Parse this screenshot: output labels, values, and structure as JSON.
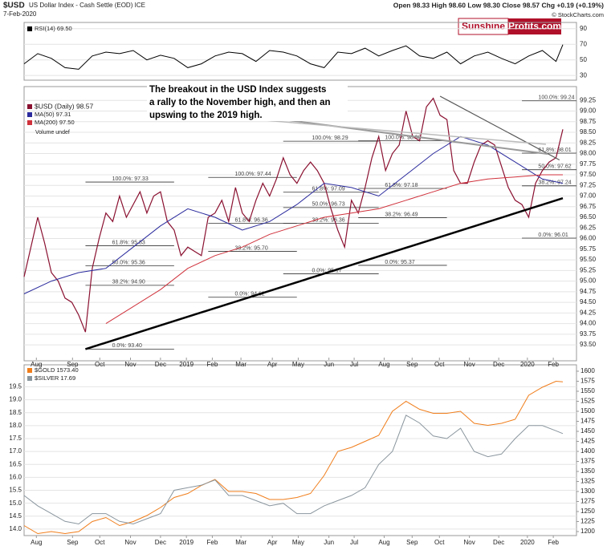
{
  "chart_data": [
    {
      "type": "line",
      "title": "RSI(14) 69.50",
      "xlim": [
        0,
        81
      ],
      "ylim": [
        24,
        98
      ],
      "yticks": [
        30,
        50,
        70,
        90
      ],
      "x": [
        0,
        2,
        4,
        6,
        8,
        10,
        12,
        14,
        16,
        18,
        20,
        22,
        24,
        26,
        28,
        30,
        32,
        34,
        36,
        38,
        40,
        42,
        44,
        46,
        48,
        50,
        52,
        54,
        56,
        58,
        60,
        62,
        64,
        66,
        68,
        70,
        72,
        74,
        76,
        78,
        79
      ],
      "series": [
        {
          "name": "RSI(14) 69.50",
          "color": "#000000",
          "values": [
            45,
            58,
            52,
            40,
            38,
            55,
            60,
            58,
            62,
            50,
            56,
            52,
            40,
            45,
            55,
            60,
            58,
            48,
            62,
            60,
            55,
            45,
            40,
            60,
            58,
            65,
            55,
            62,
            68,
            55,
            52,
            60,
            45,
            55,
            60,
            52,
            45,
            55,
            62,
            48,
            69.5
          ]
        }
      ]
    },
    {
      "type": "line",
      "symbol": "$USD",
      "name": "US Dollar Index - Cash Settle (EOD) ICE",
      "date": "7-Feb-2020",
      "quote": "Open 98.33 High 98.60 Low 98.30 Close 98.57 Chg +0.19 (+0.19%)",
      "credit": "© StockCharts.com",
      "logo": [
        "Sunshine",
        "Profits.com"
      ],
      "volume_label": "Volume undef",
      "annotation": [
        "The breakout in the USD Index suggests",
        "a rally to the November high, and then an",
        "upswing to the 2019 high."
      ],
      "xlim": [
        0,
        81
      ],
      "ylim": [
        93.2,
        99.5
      ],
      "yticks": [
        {
          "value": 93.5,
          "label": "93.50"
        },
        {
          "value": 93.75,
          "label": "93.75"
        },
        {
          "value": 94,
          "label": "94.00"
        },
        {
          "value": 94.25,
          "label": "94.25"
        },
        {
          "value": 94.5,
          "label": "94.50"
        },
        {
          "value": 94.75,
          "label": "94.75"
        },
        {
          "value": 95,
          "label": "95.00"
        },
        {
          "value": 95.25,
          "label": "95.25"
        },
        {
          "value": 95.5,
          "label": "95.50"
        },
        {
          "value": 95.75,
          "label": "95.75"
        },
        {
          "value": 96,
          "label": "96.00"
        },
        {
          "value": 96.25,
          "label": "96.25"
        },
        {
          "value": 96.5,
          "label": "96.50"
        },
        {
          "value": 96.75,
          "label": "96.75"
        },
        {
          "value": 97,
          "label": "97.00"
        },
        {
          "value": 97.25,
          "label": "97.25"
        },
        {
          "value": 97.5,
          "label": "97.50"
        },
        {
          "value": 97.75,
          "label": "97.75"
        },
        {
          "value": 98,
          "label": "98.00"
        },
        {
          "value": 98.25,
          "label": "98.25"
        },
        {
          "value": 98.5,
          "label": "98.50"
        },
        {
          "value": 98.75,
          "label": "98.75"
        },
        {
          "value": 99,
          "label": "99.00"
        },
        {
          "value": 99.25,
          "label": "99.25"
        }
      ],
      "xticks": [
        {
          "value": 1.8,
          "label": "Aug"
        },
        {
          "value": 7.1,
          "label": "Sep"
        },
        {
          "value": 11.1,
          "label": "Oct"
        },
        {
          "value": 15.6,
          "label": "Nov"
        },
        {
          "value": 20,
          "label": "Dec"
        },
        {
          "value": 23.8,
          "label": "2019"
        },
        {
          "value": 27.6,
          "label": "Feb"
        },
        {
          "value": 31.8,
          "label": "Mar"
        },
        {
          "value": 36.4,
          "label": "Apr"
        },
        {
          "value": 40.2,
          "label": "May"
        },
        {
          "value": 44.7,
          "label": "Jun"
        },
        {
          "value": 48.4,
          "label": "Jul"
        },
        {
          "value": 52.8,
          "label": "Aug"
        },
        {
          "value": 56.9,
          "label": "Sep"
        },
        {
          "value": 60.9,
          "label": "Oct"
        },
        {
          "value": 65.3,
          "label": "Nov"
        },
        {
          "value": 69.6,
          "label": "Dec"
        },
        {
          "value": 73.8,
          "label": "2020"
        },
        {
          "value": 77.6,
          "label": "Feb"
        }
      ],
      "x": [
        0,
        1,
        2,
        3,
        4,
        5,
        6,
        7,
        8,
        9,
        10,
        11,
        12,
        13,
        14,
        15,
        16,
        17,
        18,
        19,
        20,
        21,
        22,
        23,
        24,
        25,
        26,
        27,
        28,
        29,
        30,
        31,
        32,
        33,
        34,
        35,
        36,
        37,
        38,
        39,
        40,
        41,
        42,
        43,
        44,
        45,
        46,
        47,
        48,
        49,
        50,
        51,
        52,
        53,
        54,
        55,
        56,
        57,
        58,
        59,
        60,
        61,
        62,
        63,
        64,
        65,
        66,
        67,
        68,
        69,
        70,
        71,
        72,
        73,
        74,
        75,
        76,
        77,
        78,
        79
      ],
      "series": [
        {
          "name": "$USD (Daily) 98.57",
          "color": "#8a1030",
          "values": [
            95.1,
            95.8,
            96.5,
            95.9,
            95.2,
            95.0,
            94.6,
            94.5,
            94.2,
            93.8,
            95.3,
            96.0,
            96.6,
            96.4,
            97.0,
            96.5,
            96.8,
            97.1,
            96.6,
            97.0,
            97.1,
            96.4,
            96.2,
            95.6,
            95.8,
            95.7,
            95.6,
            96.5,
            96.6,
            96.9,
            96.4,
            97.2,
            96.6,
            96.4,
            96.9,
            97.3,
            97.0,
            97.4,
            97.9,
            97.5,
            97.3,
            97.6,
            97.8,
            97.6,
            97.3,
            96.7,
            96.2,
            95.8,
            96.9,
            96.6,
            97.2,
            97.9,
            98.4,
            97.6,
            98.0,
            98.2,
            99.0,
            98.4,
            98.3,
            99.1,
            99.3,
            98.9,
            98.8,
            97.6,
            97.3,
            97.3,
            97.8,
            98.2,
            98.3,
            98.2,
            97.7,
            97.2,
            96.9,
            96.8,
            96.5,
            97.3,
            97.6,
            97.8,
            97.9,
            98.57
          ]
        },
        {
          "name": "MA(50) 97.31",
          "color": "#2b2b9e",
          "x": [
            0,
            4,
            8,
            12,
            16,
            20,
            24,
            28,
            32,
            36,
            40,
            44,
            48,
            52,
            56,
            60,
            64,
            68,
            72,
            76,
            79
          ],
          "values": [
            94.7,
            95.0,
            95.2,
            95.3,
            95.8,
            96.3,
            96.7,
            96.5,
            96.2,
            96.4,
            96.8,
            97.3,
            97.2,
            97.0,
            97.5,
            98.0,
            98.4,
            98.2,
            97.8,
            97.4,
            97.3
          ]
        },
        {
          "name": "MA(200) 97.50",
          "color": "#d0323c",
          "x": [
            12,
            16,
            20,
            24,
            28,
            32,
            36,
            40,
            44,
            48,
            52,
            56,
            60,
            64,
            68,
            72,
            76,
            79
          ],
          "values": [
            94.0,
            94.4,
            94.8,
            95.3,
            95.6,
            95.8,
            96.1,
            96.3,
            96.5,
            96.6,
            96.7,
            96.9,
            97.1,
            97.3,
            97.4,
            97.45,
            97.5,
            97.5
          ]
        }
      ],
      "trendlines": [
        {
          "color": "#000000",
          "x": [
            9,
            79
          ],
          "values": [
            93.4,
            96.95
          ]
        },
        {
          "color": "#555555",
          "x": [
            61,
            78.5
          ],
          "values": [
            99.35,
            97.85
          ]
        }
      ],
      "fibs": [
        {
          "label": "100.0%: 97.33",
          "value": 97.33,
          "x": [
            9,
            22
          ]
        },
        {
          "label": "61.8%: 95.83",
          "value": 95.83,
          "x": [
            9,
            22
          ]
        },
        {
          "label": "50.0%: 95.36",
          "value": 95.36,
          "x": [
            9,
            22
          ]
        },
        {
          "label": "38.2%: 94.90",
          "value": 94.9,
          "x": [
            9,
            22
          ]
        },
        {
          "label": "0.0%: 93.40",
          "value": 93.4,
          "x": [
            9,
            22
          ]
        },
        {
          "label": "100.0%: 97.44",
          "value": 97.44,
          "x": [
            27,
            40
          ]
        },
        {
          "label": "61.8%: 96.36",
          "value": 96.36,
          "x": [
            27,
            40
          ]
        },
        {
          "label": "38.2%: 95.70",
          "value": 95.7,
          "x": [
            27,
            40
          ]
        },
        {
          "label": "0.0%: 94.62",
          "value": 94.62,
          "x": [
            27,
            40
          ]
        },
        {
          "label": "100.0%: 98.29",
          "value": 98.29,
          "x": [
            38,
            52
          ]
        },
        {
          "label": "61.8%: 97.09",
          "value": 97.09,
          "x": [
            38,
            52
          ]
        },
        {
          "label": "50.0%: 96.73",
          "value": 96.73,
          "x": [
            38,
            52
          ]
        },
        {
          "label": "38.2%: 96.36",
          "value": 96.36,
          "x": [
            38,
            52
          ]
        },
        {
          "label": "0.0%: 95.17",
          "value": 95.17,
          "x": [
            38,
            52
          ]
        },
        {
          "label": "100.0%: 98.30",
          "value": 98.3,
          "x": [
            49,
            62
          ]
        },
        {
          "label": "61.8%: 97.18",
          "value": 97.18,
          "x": [
            49,
            62
          ]
        },
        {
          "label": "38.2%: 96.49",
          "value": 96.49,
          "x": [
            49,
            62
          ]
        },
        {
          "label": "0.0%: 95.37",
          "value": 95.37,
          "x": [
            49,
            62
          ]
        },
        {
          "label": "100.0%: 99.24",
          "value": 99.24,
          "x": [
            73,
            81
          ]
        },
        {
          "label": "61.8%: 98.01",
          "value": 98.01,
          "x": [
            73,
            81
          ]
        },
        {
          "label": "50.0%: 97.62",
          "value": 97.62,
          "x": [
            73,
            81
          ]
        },
        {
          "label": "38.2%: 97.24",
          "value": 97.24,
          "x": [
            73,
            81
          ]
        },
        {
          "label": "0.0%: 96.01",
          "value": 96.01,
          "x": [
            73,
            81
          ]
        }
      ]
    },
    {
      "type": "line",
      "xlim": [
        0,
        81
      ],
      "ylim": [
        13.75,
        20.35
      ],
      "y2lim": [
        1190,
        1616
      ],
      "yticks": [
        {
          "value": 14,
          "label": "14.0"
        },
        {
          "value": 14.5,
          "label": "14.5"
        },
        {
          "value": 15,
          "label": "15.0"
        },
        {
          "value": 15.5,
          "label": "15.5"
        },
        {
          "value": 16,
          "label": "16.0"
        },
        {
          "value": 16.5,
          "label": "16.5"
        },
        {
          "value": 17,
          "label": "17.0"
        },
        {
          "value": 17.5,
          "label": "17.5"
        },
        {
          "value": 18,
          "label": "18.0"
        },
        {
          "value": 18.5,
          "label": "18.5"
        },
        {
          "value": 19,
          "label": "19.0"
        },
        {
          "value": 19.5,
          "label": "19.5"
        }
      ],
      "y2ticks": [
        1200,
        1225,
        1250,
        1275,
        1300,
        1325,
        1350,
        1375,
        1400,
        1425,
        1450,
        1475,
        1500,
        1525,
        1550,
        1575,
        1600
      ],
      "xticks": [
        {
          "value": 1.8,
          "label": "Aug"
        },
        {
          "value": 7.1,
          "label": "Sep"
        },
        {
          "value": 11.1,
          "label": "Oct"
        },
        {
          "value": 15.6,
          "label": "Nov"
        },
        {
          "value": 20,
          "label": "Dec"
        },
        {
          "value": 23.8,
          "label": "2019"
        },
        {
          "value": 27.6,
          "label": "Feb"
        },
        {
          "value": 31.8,
          "label": "Mar"
        },
        {
          "value": 36.4,
          "label": "Apr"
        },
        {
          "value": 40.2,
          "label": "May"
        },
        {
          "value": 44.7,
          "label": "Jun"
        },
        {
          "value": 48.4,
          "label": "Jul"
        },
        {
          "value": 52.8,
          "label": "Aug"
        },
        {
          "value": 56.9,
          "label": "Sep"
        },
        {
          "value": 60.9,
          "label": "Oct"
        },
        {
          "value": 65.3,
          "label": "Nov"
        },
        {
          "value": 69.6,
          "label": "Dec"
        },
        {
          "value": 73.8,
          "label": "2020"
        },
        {
          "value": 77.6,
          "label": "Feb"
        }
      ],
      "x": [
        0,
        2,
        4,
        6,
        8,
        10,
        12,
        14,
        16,
        18,
        20,
        22,
        24,
        26,
        28,
        30,
        32,
        34,
        36,
        38,
        40,
        42,
        44,
        46,
        48,
        50,
        52,
        54,
        56,
        58,
        60,
        62,
        64,
        66,
        68,
        70,
        72,
        74,
        76,
        78,
        79
      ],
      "series": [
        {
          "name": "$GOLD 1573.40",
          "color": "#f07d1a",
          "axis": "y2",
          "values": [
            1215,
            1195,
            1200,
            1195,
            1200,
            1225,
            1235,
            1215,
            1225,
            1240,
            1260,
            1285,
            1295,
            1315,
            1330,
            1300,
            1300,
            1295,
            1280,
            1280,
            1285,
            1295,
            1340,
            1400,
            1410,
            1425,
            1440,
            1500,
            1525,
            1505,
            1495,
            1495,
            1500,
            1470,
            1465,
            1470,
            1480,
            1540,
            1560,
            1575,
            1573.4
          ]
        },
        {
          "name": "$SILVER 17.69",
          "color": "#8a969e",
          "values": [
            15.3,
            14.9,
            14.6,
            14.3,
            14.2,
            14.6,
            14.6,
            14.3,
            14.2,
            14.4,
            14.6,
            15.5,
            15.6,
            15.7,
            15.9,
            15.3,
            15.3,
            15.1,
            14.9,
            15.0,
            14.6,
            14.6,
            14.9,
            15.1,
            15.3,
            15.6,
            16.5,
            17.0,
            18.4,
            18.1,
            17.6,
            17.5,
            17.9,
            17.0,
            16.8,
            16.9,
            17.5,
            18.0,
            18.0,
            17.8,
            17.69
          ]
        }
      ]
    }
  ]
}
